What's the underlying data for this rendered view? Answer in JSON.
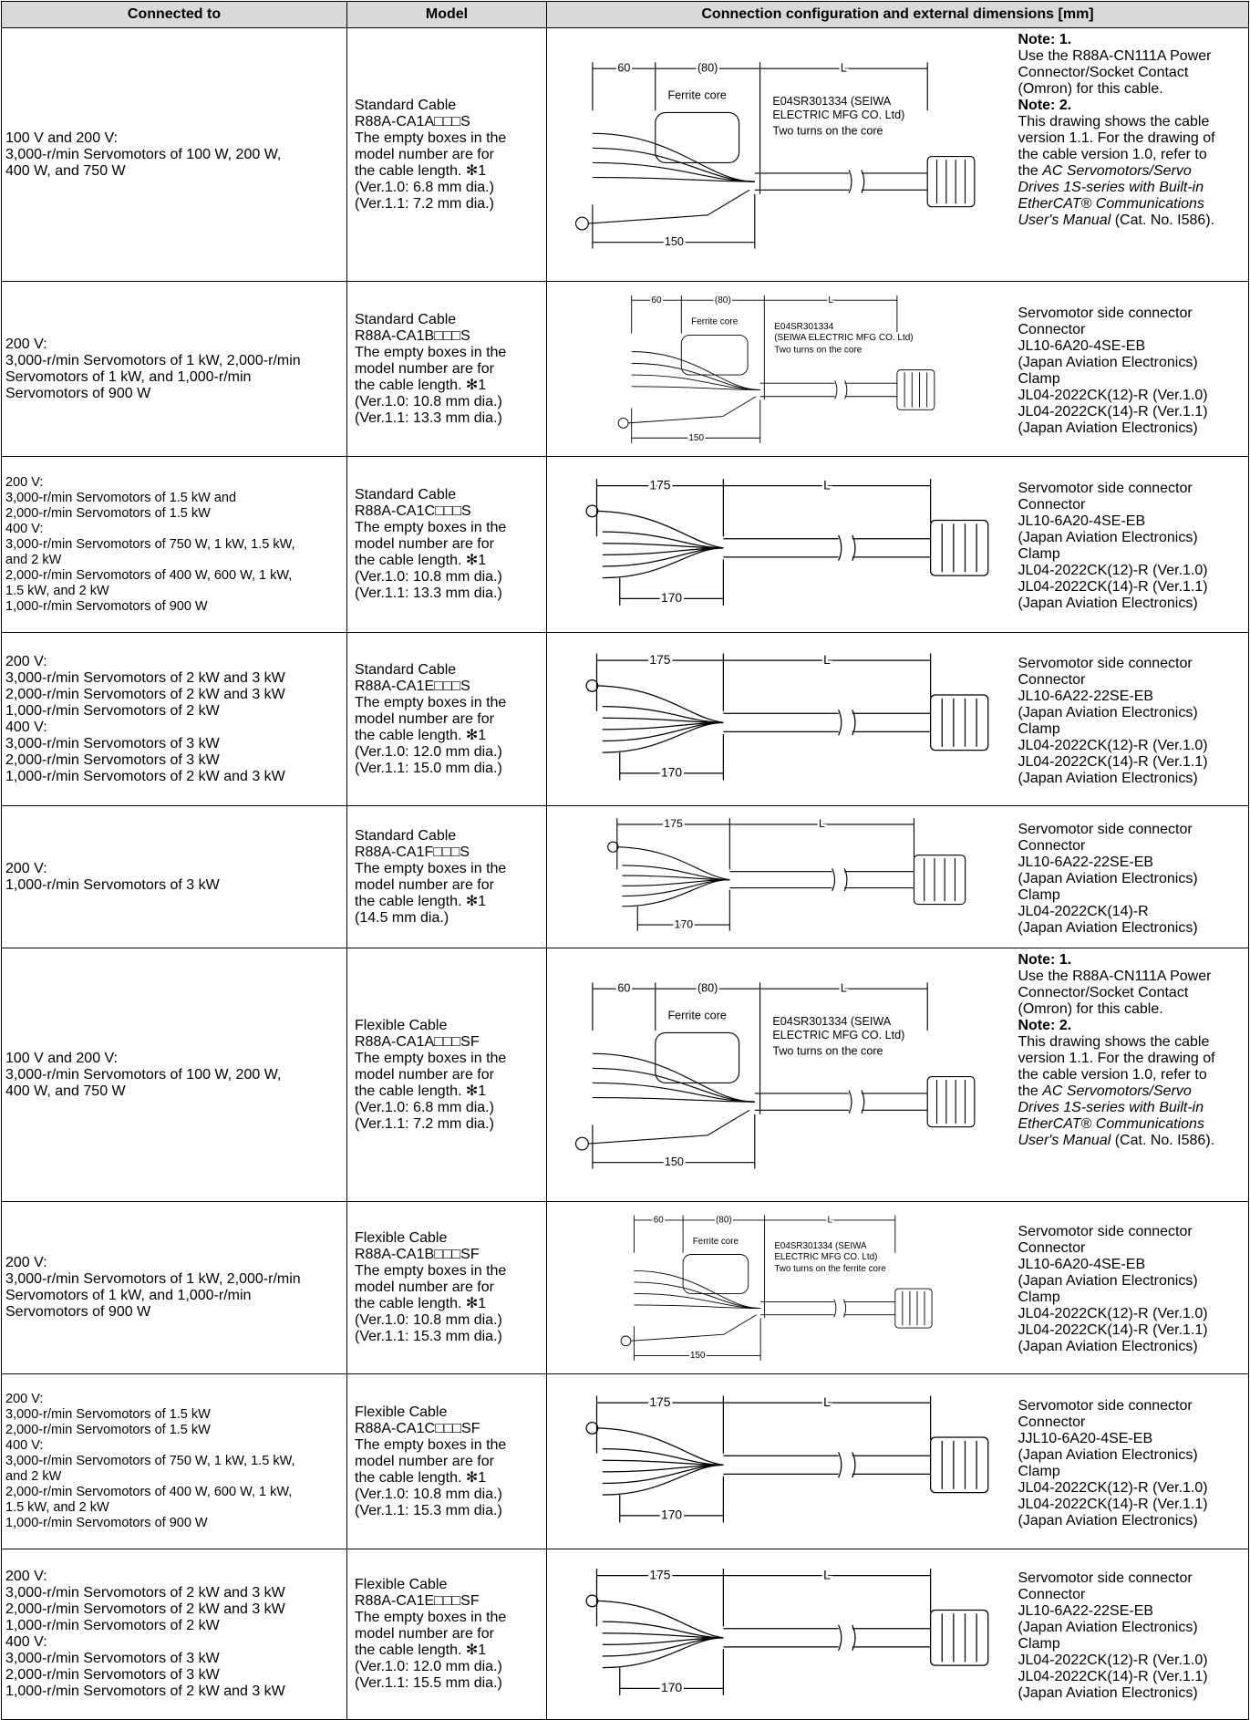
{
  "table": {
    "header": [
      "Connected to",
      "Model",
      "Connection configuration and external dimensions [mm]"
    ],
    "rows": [
      {
        "connected": [
          "100 V and 200 V:",
          "3,000-r/min Servomotors of 100 W, 200 W,",
          "400 W, and 750 W"
        ],
        "model": [
          "Standard Cable",
          "R88A-CA1A□□□S",
          "The empty boxes in the",
          "model number are for",
          "the cable length. ✻1",
          "(Ver.1.0: 6.8 mm dia.)",
          "(Ver.1.1: 7.2 mm dia.)"
        ],
        "diagram": {
          "kind": "core",
          "dim_a": "60",
          "dim_b": "(80)",
          "dim_l": "L",
          "core": "Ferrite core",
          "part": [
            "E04SR301334 (SEIWA",
            "ELECTRIC MFG CO. Ltd)"
          ],
          "turns": "Two turns on the core",
          "dim_c": "150"
        },
        "notes": [
          [
            {
              "b": "Note:  1."
            }
          ],
          [
            "Use the R88A-CN111A Power"
          ],
          [
            "Connector/Socket Contact"
          ],
          [
            "(Omron) for this cable."
          ],
          [
            {
              "b": "Note:  2."
            }
          ],
          [
            "This drawing shows the cable"
          ],
          [
            "version 1.1. For the drawing of"
          ],
          [
            "the cable version 1.0, refer to"
          ],
          [
            "the ",
            {
              "i": "AC Servomotors/Servo"
            }
          ],
          [
            {
              "i": "Drives 1S-series with Built-in"
            }
          ],
          [
            {
              "i": "EtherCAT® Communications"
            }
          ],
          [
            {
              "i": "User's Manual"
            },
            " (Cat. No. I586)."
          ]
        ]
      },
      {
        "connected": [
          "200 V:",
          "3,000-r/min Servomotors of 1 kW, 2,000-r/min",
          "Servomotors of 1 kW, and 1,000-r/min",
          "Servomotors of 900 W"
        ],
        "model": [
          "Standard Cable",
          "R88A-CA1B□□□S",
          "The empty boxes in the",
          "model number are for",
          "the cable length. ✻1",
          "(Ver.1.0: 10.8 mm dia.)",
          "(Ver.1.1: 13.3 mm dia.)"
        ],
        "diagram": {
          "kind": "core",
          "dim_a": "60",
          "dim_b": "(80)",
          "dim_l": "L",
          "core": "Ferrite core",
          "part": [
            "E04SR301334",
            "(SEIWA ELECTRIC MFG CO. Ltd)"
          ],
          "turns": "Two turns on the core",
          "dim_c": "150"
        },
        "notes": [
          [
            "Servomotor side connector"
          ],
          [
            "Connector"
          ],
          [
            "JL10-6A20-4SE-EB"
          ],
          [
            "(Japan Aviation Electronics)"
          ],
          [
            "Clamp"
          ],
          [
            "JL04-2022CK(12)-R (Ver.1.0)"
          ],
          [
            "JL04-2022CK(14)-R (Ver.1.1)"
          ],
          [
            "(Japan Aviation Electronics)"
          ]
        ]
      },
      {
        "connected": [
          "200 V:",
          "3,000-r/min Servomotors of 1.5 kW and",
          "2,000-r/min Servomotors of 1.5 kW",
          "400 V:",
          "3,000-r/min Servomotors of 750 W, 1 kW, 1.5 kW,",
          "and 2 kW",
          "2,000-r/min Servomotors of 400 W, 600 W, 1 kW,",
          "1.5 kW, and 2 kW",
          "1,000-r/min Servomotors of 900 W"
        ],
        "model": [
          "Standard Cable",
          "R88A-CA1C□□□S",
          "The empty boxes in the",
          "model number are for",
          "the cable length. ✻1",
          "(Ver.1.0: 10.8 mm dia.)",
          "(Ver.1.1: 13.3 mm dia.)"
        ],
        "diagram": {
          "kind": "plain",
          "dim_a": "175",
          "dim_l": "L",
          "dim_c": "170"
        },
        "notes": [
          [
            "Servomotor side connector"
          ],
          [
            "Connector"
          ],
          [
            "JL10-6A20-4SE-EB"
          ],
          [
            "(Japan Aviation Electronics)"
          ],
          [
            "Clamp"
          ],
          [
            "JL04-2022CK(12)-R (Ver.1.0)"
          ],
          [
            "JL04-2022CK(14)-R (Ver.1.1)"
          ],
          [
            "(Japan Aviation Electronics)"
          ]
        ]
      },
      {
        "connected": [
          "200 V:",
          "3,000-r/min Servomotors of 2 kW and 3 kW",
          "2,000-r/min Servomotors of 2 kW and 3 kW",
          "1,000-r/min Servomotors of 2 kW",
          "400 V:",
          "3,000-r/min Servomotors of 3 kW",
          "2,000-r/min Servomotors of 3 kW",
          "1,000-r/min Servomotors of 2 kW and 3 kW"
        ],
        "model": [
          "Standard Cable",
          "R88A-CA1E□□□S",
          "The empty boxes in the",
          "model number are for",
          "the cable length. ✻1",
          "(Ver.1.0: 12.0 mm dia.)",
          "(Ver.1.1: 15.0 mm dia.)"
        ],
        "diagram": {
          "kind": "plain",
          "dim_a": "175",
          "dim_l": "L",
          "dim_c": "170"
        },
        "notes": [
          [
            "Servomotor side connector"
          ],
          [
            "Connector"
          ],
          [
            "JL10-6A22-22SE-EB"
          ],
          [
            "(Japan Aviation Electronics)"
          ],
          [
            "Clamp"
          ],
          [
            "JL04-2022CK(12)-R (Ver.1.0)"
          ],
          [
            "JL04-2022CK(14)-R (Ver.1.1)"
          ],
          [
            "(Japan Aviation Electronics)"
          ]
        ]
      },
      {
        "connected": [
          "200 V:",
          "1,000-r/min Servomotors of 3 kW"
        ],
        "model": [
          "Standard Cable",
          "R88A-CA1F□□□S",
          "The empty boxes in the",
          "model number are for",
          "the cable length. ✻1",
          "(14.5 mm dia.)"
        ],
        "diagram": {
          "kind": "plain",
          "dim_a": "175",
          "dim_l": "L",
          "dim_c": "170"
        },
        "notes": [
          [
            "Servomotor side connector"
          ],
          [
            "Connector"
          ],
          [
            "JL10-6A22-22SE-EB"
          ],
          [
            "(Japan Aviation Electronics)"
          ],
          [
            "Clamp"
          ],
          [
            "JL04-2022CK(14)-R"
          ],
          [
            "(Japan Aviation Electronics)"
          ]
        ]
      },
      {
        "connected": [
          "100 V and 200 V:",
          "3,000-r/min Servomotors of 100 W, 200 W,",
          "400 W, and 750 W"
        ],
        "model": [
          "Flexible Cable",
          "R88A-CA1A□□□SF",
          "The empty boxes in the",
          "model number are for",
          "the cable length. ✻1",
          "(Ver.1.0: 6.8 mm dia.)",
          "(Ver.1.1: 7.2 mm dia.)"
        ],
        "diagram": {
          "kind": "core",
          "dim_a": "60",
          "dim_b": "(80)",
          "dim_l": "L",
          "core": "Ferrite core",
          "part": [
            "E04SR301334 (SEIWA",
            "ELECTRIC MFG CO. Ltd)"
          ],
          "turns": "Two turns on the core",
          "dim_c": "150"
        },
        "notes": [
          [
            {
              "b": "Note:  1."
            }
          ],
          [
            "Use the R88A-CN111A Power"
          ],
          [
            "Connector/Socket Contact"
          ],
          [
            "(Omron) for this cable."
          ],
          [
            {
              "b": "Note:  2."
            }
          ],
          [
            "This drawing shows the cable"
          ],
          [
            "version 1.1. For the drawing of"
          ],
          [
            "the cable version 1.0, refer to"
          ],
          [
            "the ",
            {
              "i": "AC Servomotors/Servo"
            }
          ],
          [
            {
              "i": "Drives 1S-series with Built-in"
            }
          ],
          [
            {
              "i": "EtherCAT® Communications"
            }
          ],
          [
            {
              "i": "User's Manual"
            },
            " (Cat. No. I586)."
          ]
        ]
      },
      {
        "connected": [
          "200 V:",
          "3,000-r/min Servomotors of 1 kW, 2,000-r/min",
          "Servomotors of 1 kW, and 1,000-r/min",
          "Servomotors of 900 W"
        ],
        "model": [
          "Flexible Cable",
          "R88A-CA1B□□□SF",
          "The empty boxes in the",
          "model number are for",
          "the cable length. ✻1",
          "(Ver.1.0: 10.8 mm dia.)",
          "(Ver.1.1: 15.3 mm dia.)"
        ],
        "diagram": {
          "kind": "core",
          "dim_a": "60",
          "dim_b": "(80)",
          "dim_l": "L",
          "core": "Ferrite core",
          "part": [
            "E04SR301334 (SEIWA",
            "ELECTRIC MFG CO. Ltd)"
          ],
          "turns": "Two turns on the ferrite core",
          "dim_c": "150"
        },
        "notes": [
          [
            "Servomotor side connector"
          ],
          [
            "Connector"
          ],
          [
            "JL10-6A20-4SE-EB"
          ],
          [
            "(Japan Aviation Electronics)"
          ],
          [
            "Clamp"
          ],
          [
            "JL04-2022CK(12)-R (Ver.1.0)"
          ],
          [
            "JL04-2022CK(14)-R (Ver.1.1)"
          ],
          [
            "(Japan Aviation Electronics)"
          ]
        ]
      },
      {
        "connected": [
          "200 V:",
          "3,000-r/min Servomotors of 1.5 kW",
          "2,000-r/min Servomotors of 1.5 kW",
          "400 V:",
          "3,000-r/min Servomotors of 750 W, 1 kW, 1.5 kW,",
          "and 2 kW",
          "2,000-r/min Servomotors of 400 W, 600 W, 1 kW,",
          "1.5 kW, and 2 kW",
          "1,000-r/min Servomotors of 900 W"
        ],
        "model": [
          "Flexible Cable",
          "R88A-CA1C□□□SF",
          "The empty boxes in the",
          "model number are for",
          "the cable length. ✻1",
          "(Ver.1.0: 10.8 mm dia.)",
          "(Ver.1.1: 15.3 mm dia.)"
        ],
        "diagram": {
          "kind": "plain",
          "dim_a": "175",
          "dim_l": "L",
          "dim_c": "170"
        },
        "notes": [
          [
            "Servomotor side connector"
          ],
          [
            "Connector"
          ],
          [
            "JJL10-6A20-4SE-EB"
          ],
          [
            "(Japan Aviation Electronics)"
          ],
          [
            "Clamp"
          ],
          [
            "JL04-2022CK(12)-R (Ver.1.0)"
          ],
          [
            "JL04-2022CK(14)-R (Ver.1.1)"
          ],
          [
            "(Japan Aviation Electronics)"
          ]
        ]
      },
      {
        "connected": [
          "200 V:",
          "3,000-r/min Servomotors of 2 kW and 3 kW",
          "2,000-r/min Servomotors of 2 kW and 3 kW",
          "1,000-r/min Servomotors of 2 kW",
          "400 V:",
          "3,000-r/min Servomotors of 3 kW",
          "2,000-r/min Servomotors of 3 kW",
          "1,000-r/min Servomotors of 2 kW and 3 kW"
        ],
        "model": [
          "Flexible Cable",
          "R88A-CA1E□□□SF",
          "The empty boxes in the",
          "model number are for",
          "the cable length. ✻1",
          "(Ver.1.0: 12.0 mm dia.)",
          "(Ver.1.1: 15.5 mm dia.)"
        ],
        "diagram": {
          "kind": "plain",
          "dim_a": "175",
          "dim_l": "L",
          "dim_c": "170"
        },
        "notes": [
          [
            "Servomotor side connector"
          ],
          [
            "Connector"
          ],
          [
            "JL10-6A22-22SE-EB"
          ],
          [
            "(Japan Aviation Electronics)"
          ],
          [
            "Clamp"
          ],
          [
            "JL04-2022CK(12)-R (Ver.1.0)"
          ],
          [
            "JL04-2022CK(14)-R (Ver.1.1)"
          ],
          [
            "(Japan Aviation Electronics)"
          ]
        ]
      }
    ]
  }
}
